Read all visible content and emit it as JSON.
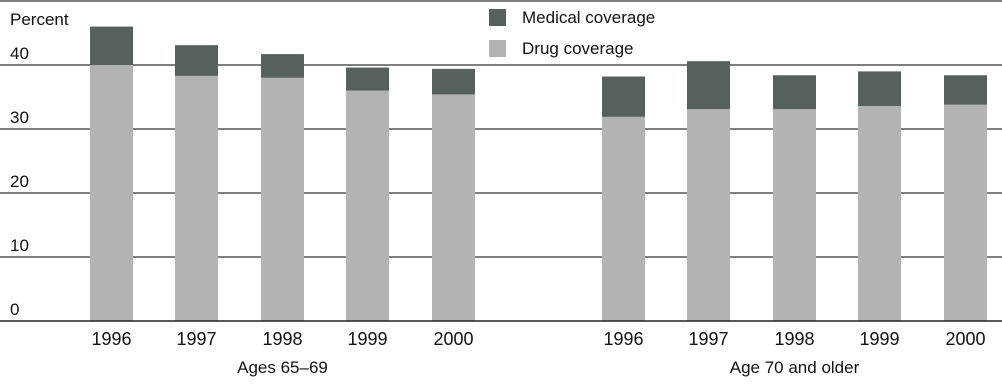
{
  "chart_data": {
    "type": "bar",
    "stacked": true,
    "ylabel": "Percent",
    "ylim": [
      0,
      50
    ],
    "yticks": [
      0,
      10,
      20,
      30,
      40
    ],
    "grid": true,
    "legend_position": "top",
    "series": [
      {
        "name": "Medical coverage",
        "color": "#56605c"
      },
      {
        "name": "Drug coverage",
        "color": "#b3b3b3"
      }
    ],
    "groups": [
      {
        "label": "Ages 65–69",
        "categories": [
          "1996",
          "1997",
          "1998",
          "1999",
          "2000"
        ],
        "drug": [
          40.0,
          38.3,
          38.0,
          36.0,
          35.4
        ],
        "medical": [
          6.0,
          4.8,
          3.7,
          3.6,
          4.0
        ]
      },
      {
        "label": "Age 70 and older",
        "categories": [
          "1996",
          "1997",
          "1998",
          "1999",
          "2000"
        ],
        "drug": [
          31.9,
          33.1,
          33.1,
          33.6,
          33.8
        ],
        "medical": [
          6.3,
          7.5,
          5.3,
          5.4,
          4.6
        ]
      }
    ]
  }
}
